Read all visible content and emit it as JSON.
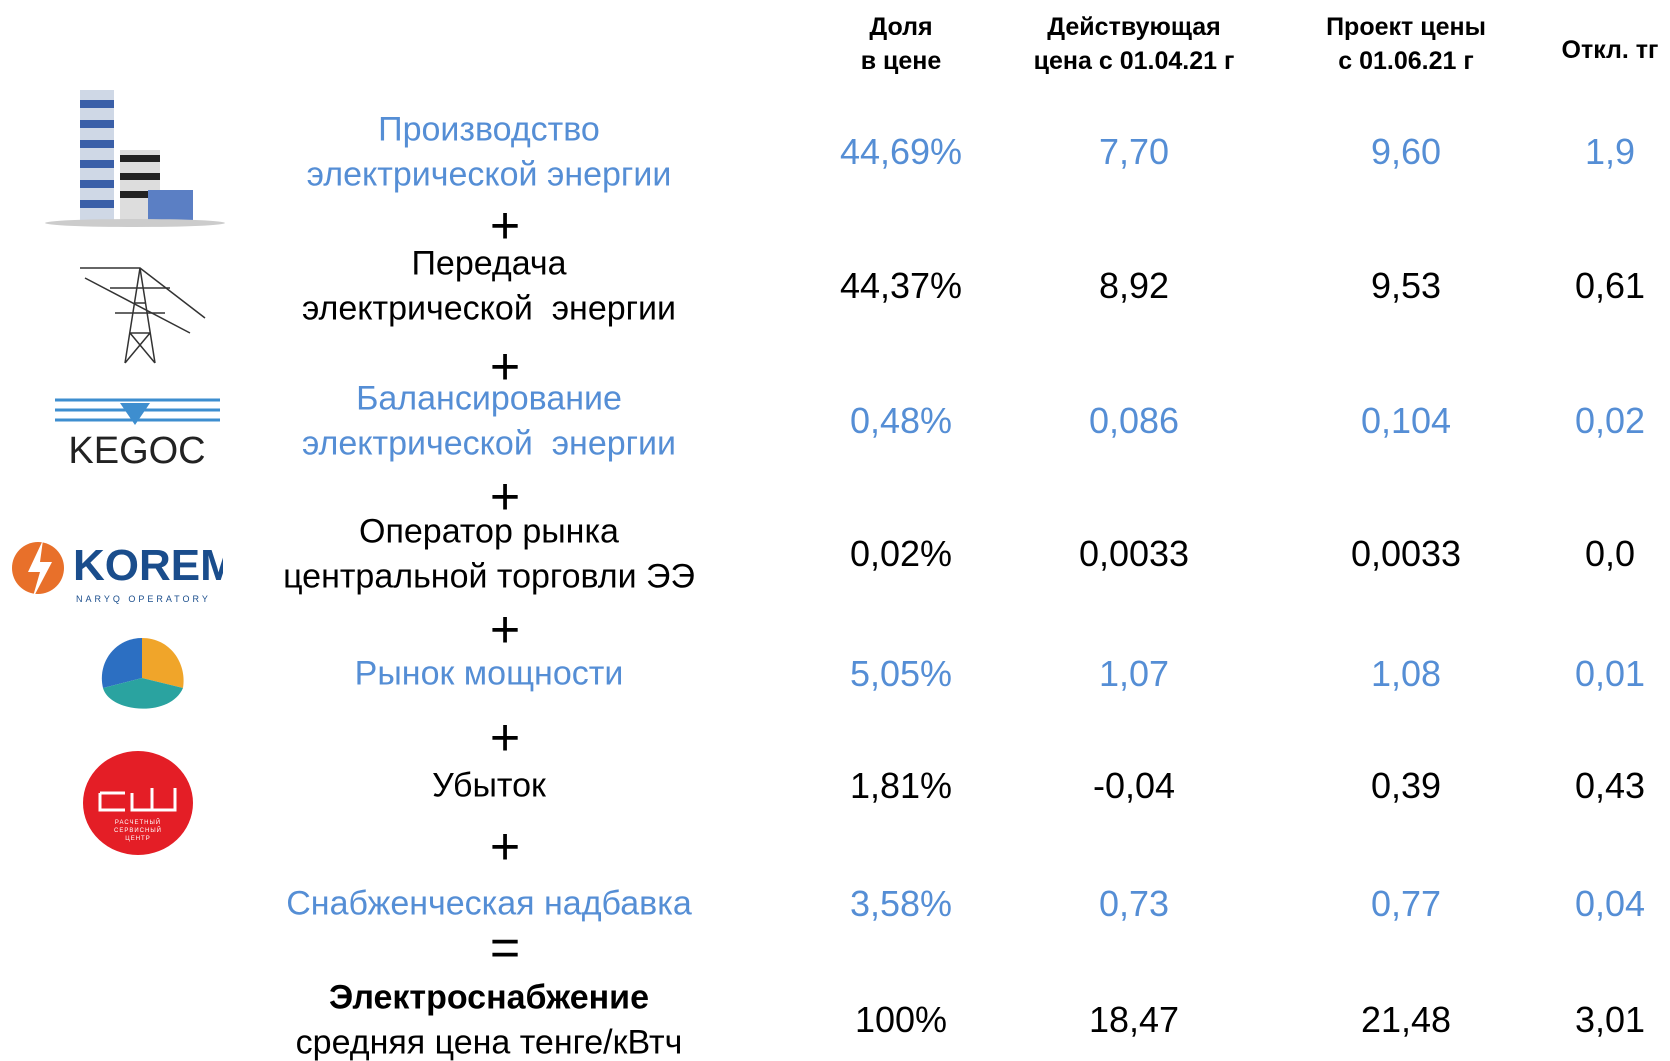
{
  "header": {
    "columns": [
      [
        "Доля",
        "в цене"
      ],
      [
        "Действующая",
        "цена с 01.04.21 г"
      ],
      [
        "Проект цены",
        "с 01.06.21 г"
      ],
      [
        "Откл. тг"
      ]
    ]
  },
  "rows": [
    {
      "label": [
        "Производство",
        "электрической энергии"
      ],
      "values": [
        "44,69%",
        "7,70",
        "9,60",
        "1,9"
      ],
      "color": "#558ed5"
    },
    {
      "label": [
        "Передача",
        "электрической  энергии"
      ],
      "values": [
        "44,37%",
        "8,92",
        "9,53",
        "0,61"
      ],
      "color": "#000000"
    },
    {
      "label": [
        "Балансирование",
        "электрической  энергии"
      ],
      "values": [
        "0,48%",
        "0,086",
        "0,104",
        "0,02"
      ],
      "color": "#558ed5"
    },
    {
      "label": [
        "Оператор рынка",
        "центральной торговли ЭЭ"
      ],
      "values": [
        "0,02%",
        "0,0033",
        "0,0033",
        "0,0"
      ],
      "color": "#000000"
    },
    {
      "label": [
        "Рынок мощности"
      ],
      "values": [
        "5,05%",
        "1,07",
        "1,08",
        "0,01"
      ],
      "color": "#558ed5"
    },
    {
      "label": [
        "Убыток"
      ],
      "values": [
        "1,81%",
        "-0,04",
        "0,39",
        "0,43"
      ],
      "color": "#000000"
    },
    {
      "label": [
        "Снабженческая надбавка"
      ],
      "values": [
        "3,58%",
        "0,73",
        "0,77",
        "0,04"
      ],
      "color": "#558ed5"
    },
    {
      "label": [
        "Электроснабжение",
        "средняя цена тенге/кВтч"
      ],
      "values": [
        "100%",
        "18,47",
        "21,48",
        "3,01"
      ],
      "color": "#000000"
    }
  ],
  "operators": [
    "+",
    "+",
    "+",
    "+",
    "+",
    "+",
    "="
  ],
  "logos": {
    "kegoc": "KEGOC",
    "korem": "KOREM",
    "korem_sub": "NARYQ OPERATORY",
    "rsc": [
      "РАСЧЕТНЫЙ",
      "СЕРВИСНЫЙ",
      "ЦЕНТР"
    ]
  }
}
